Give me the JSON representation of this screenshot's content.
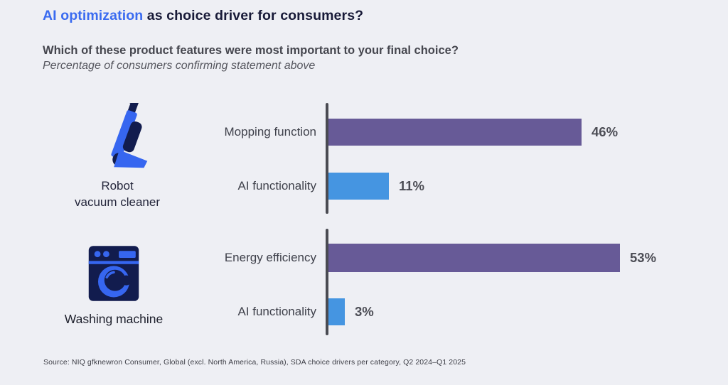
{
  "page": {
    "title_highlight": "AI optimization",
    "title_rest": " as choice driver for consumers?",
    "subtitle_bold": "Which of these product features were most important to your final choice?",
    "subtitle_italic": "Percentage of consumers confirming statement above",
    "source": "Source: NIQ gfknewron Consumer, Global (excl. North America, Russia), SDA choice drivers per category, Q2 2024–Q1 2025"
  },
  "colors": {
    "accent_blue": "#3a6bf0",
    "title_navy": "#181a38",
    "bar_purple": "#675a97",
    "bar_blue": "#4595e1",
    "axis_gray": "#4a4b52",
    "icon_blue": "#3666f0",
    "icon_navy": "#121c4e",
    "background": "#eeeff4"
  },
  "chart_data": [
    {
      "type": "bar",
      "orientation": "horizontal",
      "group_label": "Robot vacuum cleaner",
      "group_label_lines": [
        "Robot",
        "vacuum cleaner"
      ],
      "group_icon": "vacuum-cleaner-icon",
      "categories": [
        "Mopping function",
        "AI functionality"
      ],
      "values": [
        46,
        11
      ],
      "value_labels": [
        "46%",
        "11%"
      ],
      "bar_colors": [
        "#675a97",
        "#4595e1"
      ],
      "unit": "%",
      "xlim": [
        0,
        60
      ],
      "grid": false,
      "legend": false
    },
    {
      "type": "bar",
      "orientation": "horizontal",
      "group_label": "Washing machine",
      "group_label_lines": [
        "Washing machine"
      ],
      "group_icon": "washing-machine-icon",
      "categories": [
        "Energy efficiency",
        "AI functionality"
      ],
      "values": [
        53,
        3
      ],
      "value_labels": [
        "53%",
        "3%"
      ],
      "bar_colors": [
        "#675a97",
        "#4595e1"
      ],
      "unit": "%",
      "xlim": [
        0,
        60
      ],
      "grid": false,
      "legend": false
    }
  ]
}
